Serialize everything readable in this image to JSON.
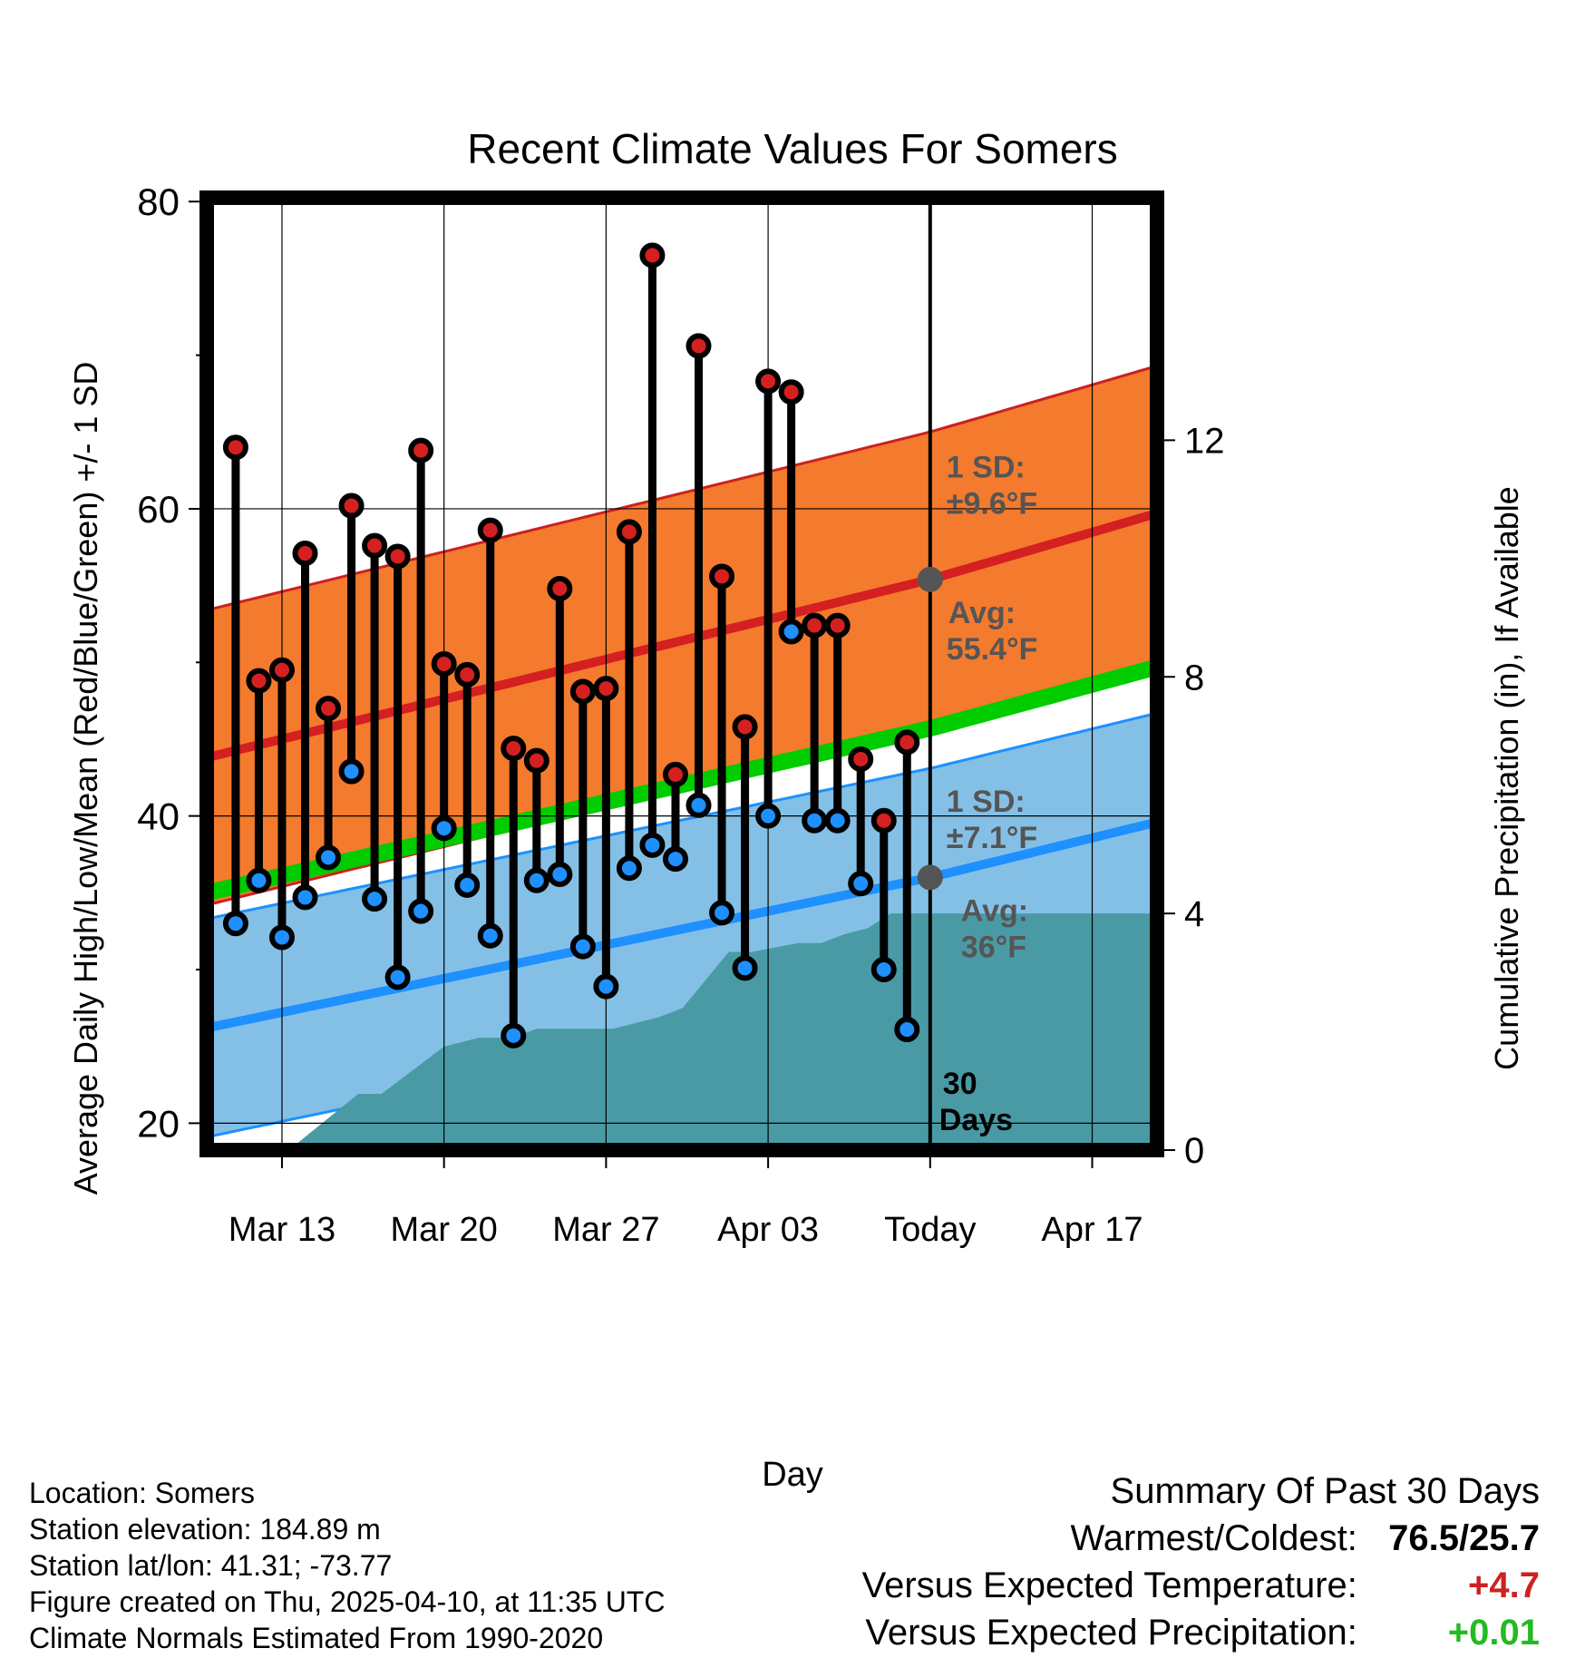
{
  "chart_data": {
    "type": "line",
    "title": "Recent Climate Values For Somers",
    "xlabel": "Day",
    "ylabel": "Average Daily High/Low/Mean (Red/Blue/Green) +/- 1 SD",
    "y2label": "Cumulative Precipitation (in), If Available",
    "x_ticks": [
      {
        "day": 3,
        "label": "Mar 13"
      },
      {
        "day": 10,
        "label": "Mar 20"
      },
      {
        "day": 17,
        "label": "Mar 27"
      },
      {
        "day": 24,
        "label": "Apr 03"
      },
      {
        "day": 31,
        "label": "Today"
      },
      {
        "day": 38,
        "label": "Apr 17"
      }
    ],
    "xlim": [
      -0.25,
      40.8
    ],
    "ylim": [
      18.25,
      80.25
    ],
    "y_ticks": [
      20,
      40,
      60,
      80
    ],
    "y2lim": [
      0,
      16.1
    ],
    "y2_ticks": [
      0,
      4,
      8,
      12
    ],
    "today_day": 31,
    "normals": {
      "days": [
        -0.25,
        31,
        40.8
      ],
      "high_avg": [
        43.8,
        55.4,
        59.7
      ],
      "high_sd": 9.6,
      "low_avg": [
        26.2,
        36.0,
        39.6
      ],
      "low_sd": 7.1,
      "mean_avg": [
        35.0,
        45.7,
        49.7
      ]
    },
    "series": [
      {
        "name": "High",
        "color": "#d42020",
        "values": [
          64.0,
          48.8,
          49.5,
          57.1,
          47.0,
          60.2,
          57.6,
          56.9,
          63.8,
          49.9,
          49.2,
          58.6,
          44.4,
          43.6,
          54.8,
          48.1,
          48.3,
          58.5,
          76.5,
          42.7,
          70.6,
          55.6,
          45.8,
          68.3,
          67.6,
          52.4,
          52.4,
          43.7,
          39.7,
          44.8
        ]
      },
      {
        "name": "Low",
        "color": "#1e90ff",
        "values": [
          33.0,
          35.8,
          32.1,
          34.7,
          37.3,
          42.9,
          34.6,
          29.5,
          33.8,
          39.2,
          35.5,
          32.2,
          25.7,
          35.8,
          36.2,
          31.5,
          28.9,
          36.6,
          38.1,
          37.2,
          40.7,
          33.7,
          30.1,
          40.0,
          52.0,
          39.7,
          39.7,
          35.6,
          30.0,
          26.1
        ]
      },
      {
        "name": "Cumulative Precipitation",
        "color": "#4a9aa5",
        "x": [
          3.3,
          6.3,
          7.3,
          10.0,
          11.5,
          13.0,
          14.0,
          15.0,
          17.3,
          18.3,
          19.3,
          20.3,
          22.3,
          23.3,
          25.3,
          26.3,
          27.3,
          28.3,
          29.3,
          40.8
        ],
        "values": [
          0,
          0.95,
          0.95,
          1.75,
          1.9,
          1.9,
          2.05,
          2.05,
          2.05,
          2.15,
          2.25,
          2.4,
          3.35,
          3.35,
          3.5,
          3.5,
          3.65,
          3.75,
          4.0,
          4.0
        ]
      }
    ],
    "annotations": {
      "high_sd_label": "1 SD:",
      "high_sd_value": "±9.6°F",
      "high_avg_label": "Avg:",
      "high_avg_value": "55.4°F",
      "low_sd_label": "1 SD:",
      "low_sd_value": "±7.1°F",
      "low_avg_label": "Avg:",
      "low_avg_value": "36°F",
      "window_count": "30",
      "window_unit": "Days"
    }
  },
  "info": {
    "location": "Location: Somers",
    "elevation": "Station elevation: 184.89 m",
    "latlon": "Station lat/lon: 41.31; -73.77",
    "created": "Figure created on Thu, 2025-04-10, at 11:35 UTC",
    "normals": "Climate Normals Estimated From 1990-2020"
  },
  "summary": {
    "heading": "Summary Of Past 30 Days",
    "warmest_coldest_label": "Warmest/Coldest:",
    "warmest_coldest_value": "76.5/25.7",
    "temp_label": "Versus Expected Temperature:",
    "temp_value": "+4.7",
    "temp_color": "#cc2222",
    "precip_label": "Versus Expected Precipitation:",
    "precip_value": "+0.01",
    "precip_color": "#22bb22"
  },
  "colors": {
    "high_band": "#f47a2e",
    "high_line": "#d42020",
    "low_band": "#84c0e6",
    "low_line": "#1e90ff",
    "mean_line": "#00cc00",
    "precip": "#4a9aa5",
    "marker_annot": "#555555"
  }
}
